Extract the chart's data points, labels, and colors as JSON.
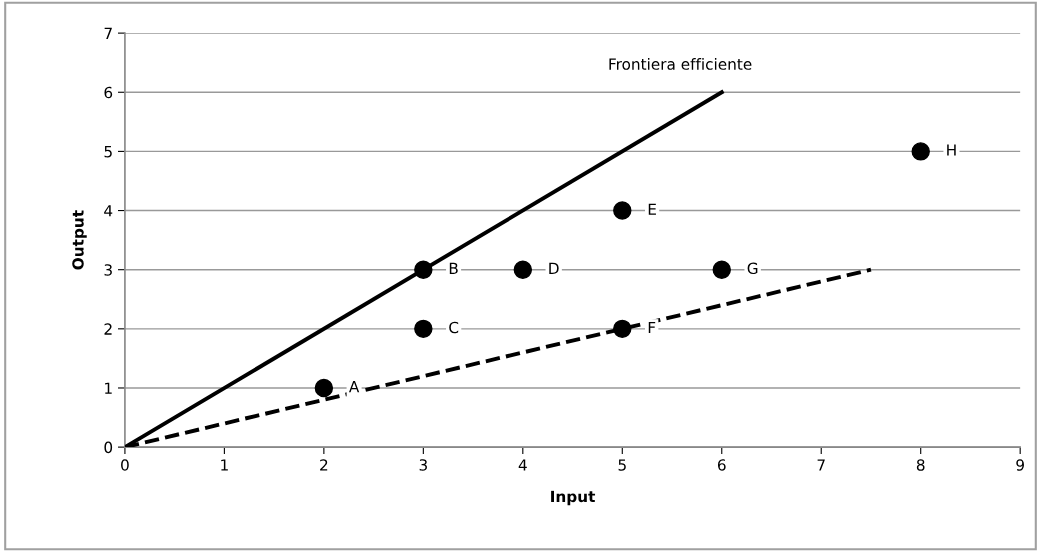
{
  "chart_data": {
    "type": "scatter",
    "xlabel": "Input",
    "ylabel": "Output",
    "xlim": [
      0,
      9
    ],
    "ylim": [
      0,
      7
    ],
    "xticks": [
      0,
      1,
      2,
      3,
      4,
      5,
      6,
      7,
      8,
      9
    ],
    "yticks": [
      0,
      1,
      2,
      3,
      4,
      5,
      6,
      7
    ],
    "grid": "y",
    "legend": false,
    "series": [
      {
        "marker": "circle",
        "color": "#000000",
        "x": [
          2,
          3,
          3,
          4,
          5,
          5,
          6,
          8
        ],
        "values": [
          1,
          3,
          2,
          3,
          4,
          2,
          3,
          5
        ]
      },
      {
        "type": "line",
        "name": "Frontiera efficiente",
        "color": "#000000",
        "line_style": "solid",
        "marker": "none",
        "x": [
          0,
          6
        ],
        "values": [
          0,
          6
        ]
      },
      {
        "type": "line",
        "color": "#000000",
        "line_style": "dashed",
        "marker": "none",
        "x": [
          0,
          7.5
        ],
        "values": [
          0,
          3
        ]
      }
    ],
    "annotations": [
      {
        "text": "A",
        "x": 2,
        "y": 1
      },
      {
        "text": "B",
        "x": 3,
        "y": 3
      },
      {
        "text": "C",
        "x": 3,
        "y": 2
      },
      {
        "text": "D",
        "x": 4,
        "y": 3
      },
      {
        "text": "E",
        "x": 5,
        "y": 4
      },
      {
        "text": "F",
        "x": 5,
        "y": 2
      },
      {
        "text": "G",
        "x": 6,
        "y": 3
      },
      {
        "text": "H",
        "x": 8,
        "y": 5
      }
    ]
  }
}
